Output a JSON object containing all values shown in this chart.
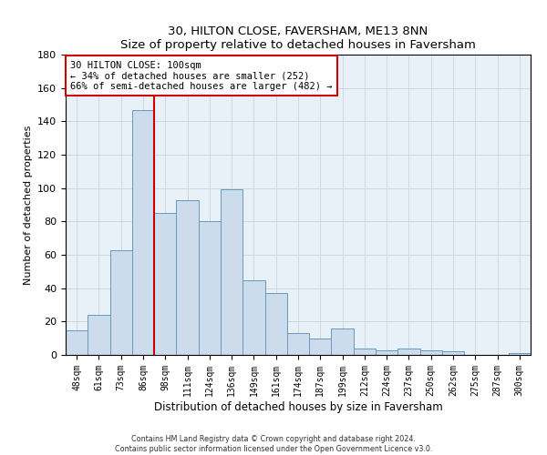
{
  "title": "30, HILTON CLOSE, FAVERSHAM, ME13 8NN",
  "subtitle": "Size of property relative to detached houses in Faversham",
  "xlabel": "Distribution of detached houses by size in Faversham",
  "ylabel": "Number of detached properties",
  "bar_labels": [
    "48sqm",
    "61sqm",
    "73sqm",
    "86sqm",
    "98sqm",
    "111sqm",
    "124sqm",
    "136sqm",
    "149sqm",
    "161sqm",
    "174sqm",
    "187sqm",
    "199sqm",
    "212sqm",
    "224sqm",
    "237sqm",
    "250sqm",
    "262sqm",
    "275sqm",
    "287sqm",
    "300sqm"
  ],
  "bar_values": [
    15,
    24,
    63,
    147,
    85,
    93,
    80,
    99,
    45,
    37,
    13,
    10,
    16,
    4,
    3,
    4,
    3,
    2,
    0,
    0,
    1
  ],
  "bar_color": "#ccdcec",
  "bar_edge_color": "#6699bb",
  "vline_x": 3.5,
  "vline_color": "#cc0000",
  "ylim": [
    0,
    180
  ],
  "yticks": [
    0,
    20,
    40,
    60,
    80,
    100,
    120,
    140,
    160,
    180
  ],
  "annotation_text": "30 HILTON CLOSE: 100sqm\n← 34% of detached houses are smaller (252)\n66% of semi-detached houses are larger (482) →",
  "annotation_box_color": "#ffffff",
  "annotation_box_edge": "#cc0000",
  "grid_color": "#c8d4e0",
  "background_color": "#e8f0f8",
  "footer_line1": "Contains HM Land Registry data © Crown copyright and database right 2024.",
  "footer_line2": "Contains public sector information licensed under the Open Government Licence v3.0."
}
